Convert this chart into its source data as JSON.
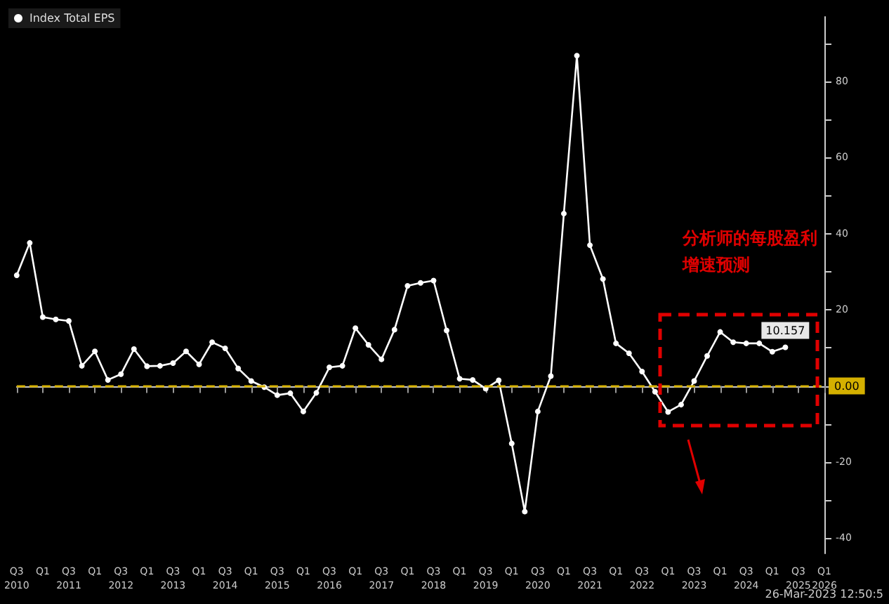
{
  "chart_data": {
    "type": "line",
    "categories": [
      "Q3\n2010",
      null,
      "Q1",
      null,
      "Q3\n2011",
      null,
      "Q1",
      null,
      "Q3\n2012",
      null,
      "Q1",
      null,
      "Q3\n2013",
      null,
      "Q1",
      null,
      "Q3\n2014",
      null,
      "Q1",
      null,
      "Q3\n2015",
      null,
      "Q1",
      null,
      "Q3\n2016",
      null,
      "Q1",
      null,
      "Q3\n2017",
      null,
      "Q1",
      null,
      "Q3\n2018",
      null,
      "Q1",
      null,
      "Q3\n2019",
      null,
      "Q1",
      null,
      "Q3\n2020",
      null,
      "Q1",
      null,
      "Q3\n2021",
      null,
      "Q1",
      null,
      "Q3\n2022",
      null,
      "Q1",
      null,
      "Q3\n2023",
      null,
      "Q1",
      null,
      "Q3\n2024",
      null,
      "Q1",
      null,
      "Q3\n2025",
      null,
      "Q1\n2026"
    ],
    "series": [
      {
        "name": "Index Total EPS",
        "color": "#ffffff",
        "values": [
          29.1,
          37.6,
          18.1,
          17.5,
          17.1,
          5.3,
          9.1,
          1.6,
          3.1,
          9.7,
          5.2,
          5.3,
          6.0,
          9.1,
          5.7,
          11.5,
          9.9,
          4.6,
          1.3,
          -0.3,
          -2.4,
          -1.9,
          -6.7,
          -1.8,
          4.9,
          5.3,
          15.2,
          10.8,
          7.0,
          14.8,
          26.3,
          27.1,
          27.7,
          14.6,
          1.9,
          1.6,
          -0.7,
          1.5,
          -15.1,
          -33.0,
          -6.7,
          2.6,
          45.3,
          86.8,
          37.0,
          28.1,
          11.2,
          8.6,
          3.8,
          -1.5,
          -6.8,
          -4.9,
          1.3,
          7.9,
          14.2,
          11.5,
          11.2,
          11.2,
          9.0,
          10.157,
          null,
          null,
          null
        ],
        "value_labels": [
          null,
          null,
          null,
          null,
          null,
          null,
          null,
          null,
          null,
          null,
          null,
          null,
          null,
          null,
          null,
          null,
          null,
          null,
          null,
          null,
          null,
          null,
          null,
          null,
          null,
          null,
          null,
          null,
          null,
          null,
          null,
          null,
          null,
          null,
          null,
          null,
          null,
          null,
          null,
          null,
          null,
          null,
          null,
          null,
          null,
          null,
          null,
          null,
          null,
          null,
          null,
          null,
          null,
          null,
          null,
          null,
          null,
          null,
          null,
          "10.157",
          null,
          null,
          null
        ]
      }
    ],
    "ylim": [
      -44,
      97
    ],
    "yticks": [
      -40,
      {
        "value": -30,
        "label": null
      },
      -20,
      {
        "value": -10,
        "label": null
      },
      {
        "value": 0,
        "label": null
      },
      {
        "value": 10,
        "label": null
      },
      20,
      {
        "value": 30,
        "label": null
      },
      40,
      {
        "value": 50,
        "label": null
      },
      60,
      {
        "value": 70,
        "label": null
      },
      80,
      {
        "value": 90,
        "label": null
      }
    ],
    "ref_lines": [
      {
        "axis": "y",
        "value": 0,
        "label": "0.00",
        "color": "#d4b000",
        "line_style": "dashed"
      }
    ],
    "annotations": [
      "分析师的每股盈利增速预测",
      "26-Mar-2023 12:50:5"
    ],
    "legend": "top left",
    "grid": false,
    "marker": "circle",
    "line_style": "solid"
  }
}
